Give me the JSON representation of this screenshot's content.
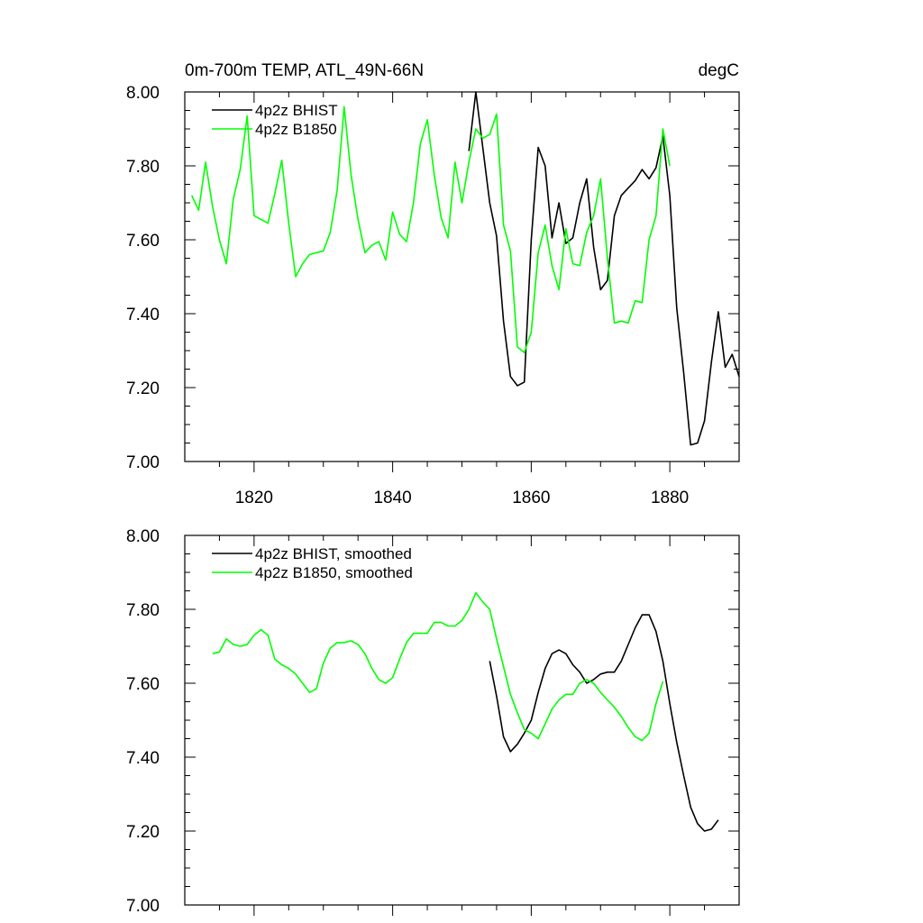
{
  "chart_data": [
    {
      "type": "line",
      "title_left": "0m-700m TEMP, ATL_49N-66N",
      "title_right": "degC",
      "xlim": [
        1810,
        1890
      ],
      "ylim": [
        7.0,
        8.0
      ],
      "x_ticks": [
        1820,
        1840,
        1860,
        1880
      ],
      "x_tick_labels": [
        "1820",
        "1840",
        "1860",
        "1880"
      ],
      "y_ticks": [
        7.0,
        7.2,
        7.4,
        7.6,
        7.8,
        8.0
      ],
      "y_tick_labels": [
        "7.00",
        "7.20",
        "7.40",
        "7.60",
        "7.80",
        "8.00"
      ],
      "grid": false,
      "legend_position": "top-left",
      "series": [
        {
          "name": "4p2z BHIST",
          "color": "#000000",
          "x_start": 1851,
          "values": [
            7.84,
            8.0,
            7.85,
            7.7,
            7.61,
            7.38,
            7.23,
            7.205,
            7.215,
            7.6,
            7.85,
            7.8,
            7.605,
            7.7,
            7.59,
            7.605,
            7.7,
            7.765,
            7.58,
            7.465,
            7.49,
            7.665,
            7.72,
            7.74,
            7.76,
            7.79,
            7.765,
            7.795,
            7.88,
            7.72,
            7.415,
            7.24,
            7.045,
            7.05,
            7.11,
            7.27,
            7.405,
            7.255,
            7.29,
            7.23
          ]
        },
        {
          "name": "4p2z B1850",
          "color": "#00ff00",
          "x_start": 1811,
          "values": [
            7.72,
            7.68,
            7.81,
            7.69,
            7.6,
            7.535,
            7.71,
            7.79,
            7.935,
            7.665,
            7.655,
            7.645,
            7.725,
            7.815,
            7.645,
            7.5,
            7.535,
            7.56,
            7.565,
            7.57,
            7.62,
            7.735,
            7.96,
            7.775,
            7.655,
            7.565,
            7.585,
            7.595,
            7.545,
            7.675,
            7.615,
            7.595,
            7.7,
            7.86,
            7.925,
            7.775,
            7.66,
            7.605,
            7.81,
            7.7,
            7.81,
            7.9,
            7.875,
            7.885,
            7.94,
            7.64,
            7.57,
            7.31,
            7.295,
            7.35,
            7.565,
            7.64,
            7.53,
            7.465,
            7.63,
            7.535,
            7.53,
            7.62,
            7.665,
            7.765,
            7.55,
            7.375,
            7.38,
            7.375,
            7.435,
            7.43,
            7.6,
            7.665,
            7.9,
            7.8
          ]
        }
      ]
    },
    {
      "type": "line",
      "xlim": [
        1810,
        1890
      ],
      "ylim": [
        7.0,
        8.0
      ],
      "x_ticks": [
        1820,
        1840,
        1860,
        1880
      ],
      "y_ticks": [
        7.0,
        7.2,
        7.4,
        7.6,
        7.8,
        8.0
      ],
      "y_tick_labels": [
        "7.00",
        "7.20",
        "7.40",
        "7.60",
        "7.80",
        "8.00"
      ],
      "grid": false,
      "legend_position": "top-left",
      "series": [
        {
          "name": "4p2z BHIST, smoothed",
          "color": "#000000",
          "x_start": 1854,
          "values": [
            7.66,
            7.565,
            7.455,
            7.415,
            7.435,
            7.465,
            7.5,
            7.575,
            7.64,
            7.68,
            7.69,
            7.68,
            7.65,
            7.63,
            7.6,
            7.61,
            7.625,
            7.63,
            7.63,
            7.66,
            7.705,
            7.75,
            7.785,
            7.785,
            7.74,
            7.66,
            7.545,
            7.44,
            7.35,
            7.265,
            7.22,
            7.2,
            7.205,
            7.23
          ]
        },
        {
          "name": "4p2z B1850, smoothed",
          "color": "#00ff00",
          "x_start": 1814,
          "values": [
            7.68,
            7.685,
            7.72,
            7.705,
            7.7,
            7.705,
            7.73,
            7.745,
            7.73,
            7.665,
            7.65,
            7.64,
            7.625,
            7.6,
            7.575,
            7.585,
            7.655,
            7.695,
            7.71,
            7.71,
            7.715,
            7.705,
            7.68,
            7.64,
            7.61,
            7.6,
            7.615,
            7.665,
            7.71,
            7.735,
            7.735,
            7.735,
            7.765,
            7.765,
            7.755,
            7.755,
            7.77,
            7.8,
            7.845,
            7.82,
            7.8,
            7.72,
            7.645,
            7.57,
            7.52,
            7.475,
            7.465,
            7.45,
            7.49,
            7.53,
            7.555,
            7.57,
            7.57,
            7.6,
            7.61,
            7.6,
            7.575,
            7.555,
            7.535,
            7.51,
            7.48,
            7.455,
            7.445,
            7.465,
            7.545,
            7.605
          ]
        }
      ]
    }
  ]
}
